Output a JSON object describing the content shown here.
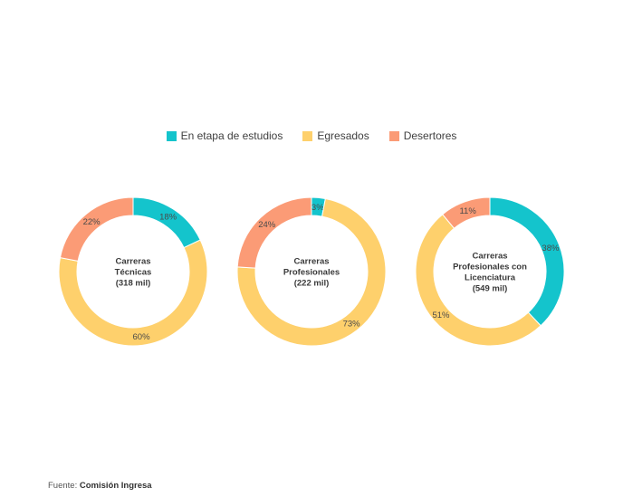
{
  "legend": [
    {
      "name": "En etapa de estudios",
      "color": "#14c4cc"
    },
    {
      "name": "Egresados",
      "color": "#fed06c"
    },
    {
      "name": "Desertores",
      "color": "#fb9b76"
    }
  ],
  "chart_data": [
    {
      "type": "pie",
      "center_lines": [
        "Carreras",
        "Técnicas",
        "(318 mil)"
      ],
      "slices": [
        {
          "series": "En etapa de estudios",
          "value": 18,
          "label": "18%"
        },
        {
          "series": "Egresados",
          "value": 60,
          "label": "60%"
        },
        {
          "series": "Desertores",
          "value": 22,
          "label": "22%"
        }
      ]
    },
    {
      "type": "pie",
      "center_lines": [
        "Carreras",
        "Profesionales",
        "(222 mil)"
      ],
      "slices": [
        {
          "series": "En etapa de estudios",
          "value": 3,
          "label": "3%"
        },
        {
          "series": "Egresados",
          "value": 73,
          "label": "73%"
        },
        {
          "series": "Desertores",
          "value": 24,
          "label": "24%"
        }
      ]
    },
    {
      "type": "pie",
      "center_lines": [
        "Carreras",
        "Profesionales con",
        "Licenciatura",
        "(549 mil)"
      ],
      "slices": [
        {
          "series": "En etapa de estudios",
          "value": 38,
          "label": "38%"
        },
        {
          "series": "Egresados",
          "value": 51,
          "label": "51%"
        },
        {
          "series": "Desertores",
          "value": 11,
          "label": "11%"
        }
      ]
    }
  ],
  "source": {
    "prefix": "Fuente:",
    "name": "Comisión Ingresa"
  }
}
